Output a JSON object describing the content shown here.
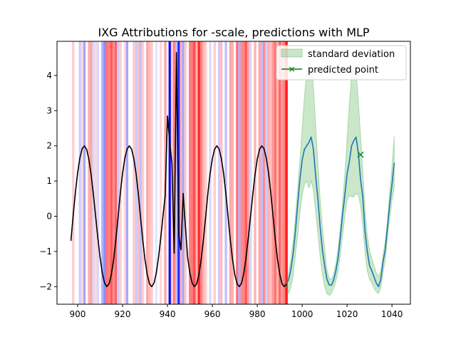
{
  "chart_data": {
    "type": "line",
    "title": "IXG Attributions for -scale, predictions with MLP",
    "xlabel": "",
    "ylabel": "",
    "xlim": [
      890.8,
      1048.2
    ],
    "ylim": [
      -2.5,
      4.97
    ],
    "xticks": [
      900,
      920,
      940,
      960,
      980,
      1000,
      1020,
      1040
    ],
    "yticks": [
      -2,
      -1,
      0,
      1,
      2,
      3,
      4
    ],
    "xtick_labels": [
      "900",
      "920",
      "940",
      "960",
      "980",
      "1000",
      "1020",
      "1040"
    ],
    "ytick_labels": [
      "−2",
      "−1",
      "0",
      "1",
      "2",
      "3",
      "4"
    ],
    "grid": false,
    "legend": {
      "placement": "top-right",
      "entries": [
        {
          "label": "standard deviation",
          "color": "#2ca02c",
          "kind": "fill"
        },
        {
          "label": "predicted point",
          "color": "#008000",
          "kind": "marker-x"
        }
      ]
    },
    "attribution_bands": [
      {
        "x": 898,
        "sign": "pos",
        "strength": 0.2
      },
      {
        "x": 901,
        "sign": "neg",
        "strength": 0.2
      },
      {
        "x": 902,
        "sign": "pos",
        "strength": 0.15
      },
      {
        "x": 903,
        "sign": "neg",
        "strength": 0.35
      },
      {
        "x": 905,
        "sign": "pos",
        "strength": 0.3
      },
      {
        "x": 906,
        "sign": "pos",
        "strength": 0.35
      },
      {
        "x": 907,
        "sign": "neg",
        "strength": 0.15
      },
      {
        "x": 908,
        "sign": "pos",
        "strength": 0.15
      },
      {
        "x": 909,
        "sign": "neg",
        "strength": 0.15
      },
      {
        "x": 911,
        "sign": "neg",
        "strength": 0.3
      },
      {
        "x": 912,
        "sign": "neg",
        "strength": 0.45
      },
      {
        "x": 913,
        "sign": "pos",
        "strength": 0.55
      },
      {
        "x": 914,
        "sign": "pos",
        "strength": 0.5
      },
      {
        "x": 915,
        "sign": "pos",
        "strength": 0.65
      },
      {
        "x": 916,
        "sign": "pos",
        "strength": 0.45
      },
      {
        "x": 917,
        "sign": "pos",
        "strength": 0.6
      },
      {
        "x": 918,
        "sign": "neg",
        "strength": 0.2
      },
      {
        "x": 919,
        "sign": "pos",
        "strength": 0.2
      },
      {
        "x": 921,
        "sign": "pos",
        "strength": 0.15
      },
      {
        "x": 922,
        "sign": "neg",
        "strength": 0.35
      },
      {
        "x": 925,
        "sign": "pos",
        "strength": 0.2
      },
      {
        "x": 926,
        "sign": "neg",
        "strength": 0.2
      },
      {
        "x": 927,
        "sign": "pos",
        "strength": 0.25
      },
      {
        "x": 928,
        "sign": "neg",
        "strength": 0.25
      },
      {
        "x": 929,
        "sign": "pos",
        "strength": 0.2
      },
      {
        "x": 931,
        "sign": "pos",
        "strength": 0.35
      },
      {
        "x": 932,
        "sign": "pos",
        "strength": 0.25
      },
      {
        "x": 933,
        "sign": "pos",
        "strength": 0.2
      },
      {
        "x": 935,
        "sign": "neg",
        "strength": 0.1
      },
      {
        "x": 937,
        "sign": "pos",
        "strength": 0.15
      },
      {
        "x": 939,
        "sign": "pos",
        "strength": 0.35
      },
      {
        "x": 941,
        "sign": "neg",
        "strength": 1.0
      },
      {
        "x": 942,
        "sign": "pos",
        "strength": 0.2
      },
      {
        "x": 943,
        "sign": "pos",
        "strength": 0.5
      },
      {
        "x": 944,
        "sign": "neg",
        "strength": 0.25
      },
      {
        "x": 945,
        "sign": "neg",
        "strength": 0.85
      },
      {
        "x": 946,
        "sign": "pos",
        "strength": 0.3
      },
      {
        "x": 947,
        "sign": "neg",
        "strength": 0.35
      },
      {
        "x": 948,
        "sign": "pos",
        "strength": 0.2
      },
      {
        "x": 950,
        "sign": "pos",
        "strength": 0.5
      },
      {
        "x": 951,
        "sign": "pos",
        "strength": 0.55
      },
      {
        "x": 952,
        "sign": "pos",
        "strength": 0.7
      },
      {
        "x": 953,
        "sign": "pos",
        "strength": 0.3
      },
      {
        "x": 954,
        "sign": "pos",
        "strength": 0.85
      },
      {
        "x": 955,
        "sign": "pos",
        "strength": 0.5
      },
      {
        "x": 956,
        "sign": "pos",
        "strength": 0.3
      },
      {
        "x": 957,
        "sign": "pos",
        "strength": 0.2
      },
      {
        "x": 959,
        "sign": "neg",
        "strength": 0.15
      },
      {
        "x": 961,
        "sign": "pos",
        "strength": 0.2
      },
      {
        "x": 963,
        "sign": "neg",
        "strength": 0.2
      },
      {
        "x": 964,
        "sign": "pos",
        "strength": 0.25
      },
      {
        "x": 966,
        "sign": "neg",
        "strength": 0.25
      },
      {
        "x": 968,
        "sign": "pos",
        "strength": 0.35
      },
      {
        "x": 969,
        "sign": "pos",
        "strength": 0.3
      },
      {
        "x": 971,
        "sign": "pos",
        "strength": 0.55
      },
      {
        "x": 972,
        "sign": "neg",
        "strength": 0.3
      },
      {
        "x": 973,
        "sign": "pos",
        "strength": 0.45
      },
      {
        "x": 974,
        "sign": "pos",
        "strength": 0.5
      },
      {
        "x": 975,
        "sign": "pos",
        "strength": 0.65
      },
      {
        "x": 976,
        "sign": "pos",
        "strength": 0.35
      },
      {
        "x": 977,
        "sign": "neg",
        "strength": 0.15
      },
      {
        "x": 979,
        "sign": "pos",
        "strength": 0.3
      },
      {
        "x": 981,
        "sign": "pos",
        "strength": 0.35
      },
      {
        "x": 982,
        "sign": "neg",
        "strength": 0.25
      },
      {
        "x": 983,
        "sign": "pos",
        "strength": 0.45
      },
      {
        "x": 984,
        "sign": "neg",
        "strength": 0.2
      },
      {
        "x": 985,
        "sign": "pos",
        "strength": 0.3
      },
      {
        "x": 986,
        "sign": "pos",
        "strength": 0.25
      },
      {
        "x": 987,
        "sign": "pos",
        "strength": 0.4
      },
      {
        "x": 988,
        "sign": "pos",
        "strength": 0.55
      },
      {
        "x": 989,
        "sign": "pos",
        "strength": 0.3
      },
      {
        "x": 990,
        "sign": "pos",
        "strength": 0.6
      },
      {
        "x": 991,
        "sign": "pos",
        "strength": 0.4
      },
      {
        "x": 992,
        "sign": "pos",
        "strength": 0.5
      },
      {
        "x": 993,
        "sign": "pos",
        "strength": 0.9
      }
    ],
    "series": [
      {
        "color": "#000000",
        "x": [
          897,
          898,
          899,
          900,
          901,
          902,
          903,
          904,
          905,
          906,
          907,
          908,
          909,
          910,
          911,
          912,
          913,
          914,
          915,
          916,
          917,
          918,
          919,
          920,
          921,
          922,
          923,
          924,
          925,
          926,
          927,
          928,
          929,
          930,
          931,
          932,
          933,
          934,
          935,
          936,
          937,
          938,
          939,
          940,
          941,
          942,
          943,
          944,
          945,
          946,
          947,
          948,
          949,
          950,
          951,
          952,
          953,
          954,
          955,
          956,
          957,
          958,
          959,
          960,
          961,
          962,
          963,
          964,
          965,
          966,
          967,
          968,
          969,
          970,
          971,
          972,
          973,
          974,
          975,
          976,
          977,
          978,
          979,
          980,
          981,
          982,
          983,
          984,
          985,
          986,
          987,
          988,
          989,
          990,
          991,
          992,
          993
        ],
        "y": [
          -0.7,
          0.02,
          0.68,
          1.24,
          1.66,
          1.92,
          2.0,
          1.9,
          1.62,
          1.18,
          0.62,
          0.0,
          -0.62,
          -1.18,
          -1.62,
          -1.9,
          -2.0,
          -1.92,
          -1.66,
          -1.24,
          -0.68,
          -0.02,
          0.65,
          1.22,
          1.64,
          1.91,
          2.0,
          1.91,
          1.64,
          1.22,
          0.65,
          -0.02,
          -0.68,
          -1.24,
          -1.66,
          -1.92,
          -2.0,
          -1.9,
          -1.62,
          -1.18,
          -0.62,
          0.0,
          0.6,
          2.85,
          2.1,
          1.5,
          -1.05,
          4.65,
          -0.5,
          -0.95,
          0.65,
          -0.3,
          -1.18,
          -1.62,
          -1.9,
          -2.0,
          -1.92,
          -1.66,
          -1.24,
          -0.68,
          -0.02,
          0.65,
          1.22,
          1.64,
          1.91,
          2.0,
          1.91,
          1.64,
          1.22,
          0.65,
          -0.02,
          -0.68,
          -1.24,
          -1.66,
          -1.92,
          -2.0,
          -1.9,
          -1.62,
          -1.18,
          -0.62,
          0.0,
          0.62,
          1.18,
          1.62,
          1.9,
          2.0,
          1.92,
          1.66,
          1.24,
          0.68,
          0.02,
          -0.65,
          -1.22,
          -1.64,
          -1.91,
          -2.0,
          -1.92
        ]
      },
      {
        "color": "#1f77b4",
        "x": [
          993,
          994,
          995,
          996,
          997,
          998,
          999,
          1000,
          1001,
          1002,
          1003,
          1004,
          1005,
          1006,
          1007,
          1008,
          1009,
          1010,
          1011,
          1012,
          1013,
          1014,
          1015,
          1016,
          1017,
          1018,
          1019,
          1020,
          1021,
          1022,
          1023,
          1024,
          1025,
          1026,
          1027,
          1028,
          1029,
          1030,
          1031,
          1032,
          1033,
          1034,
          1035,
          1036,
          1037,
          1038,
          1039,
          1040,
          1041
        ],
        "y": [
          -1.92,
          -1.8,
          -1.5,
          -1.05,
          -0.42,
          0.35,
          1.05,
          1.6,
          1.9,
          2.0,
          2.1,
          2.25,
          1.9,
          1.15,
          0.5,
          -0.3,
          -0.95,
          -1.4,
          -1.78,
          -1.95,
          -1.96,
          -1.82,
          -1.55,
          -1.18,
          -0.6,
          0.05,
          0.6,
          1.2,
          1.55,
          2.0,
          2.15,
          2.25,
          1.8,
          1.05,
          0.55,
          -0.45,
          -1.0,
          -1.4,
          -1.55,
          -1.72,
          -1.9,
          -2.0,
          -1.8,
          -1.3,
          -0.95,
          -0.3,
          0.35,
          0.9,
          1.52
        ]
      }
    ],
    "std_band": {
      "color": "#2ca02c",
      "x": [
        993,
        994,
        995,
        996,
        997,
        998,
        999,
        1000,
        1001,
        1002,
        1003,
        1004,
        1005,
        1006,
        1007,
        1008,
        1009,
        1010,
        1011,
        1012,
        1013,
        1014,
        1015,
        1016,
        1017,
        1018,
        1019,
        1020,
        1021,
        1022,
        1023,
        1024,
        1025,
        1026,
        1027,
        1028,
        1029,
        1030,
        1031,
        1032,
        1033,
        1034,
        1035,
        1036,
        1037,
        1038,
        1039,
        1040,
        1041
      ],
      "upper": [
        -1.9,
        -1.6,
        -1.2,
        -0.7,
        0.0,
        0.8,
        1.6,
        2.5,
        3.4,
        4.1,
        4.5,
        4.4,
        3.7,
        2.6,
        1.5,
        0.5,
        -0.3,
        -0.9,
        -1.5,
        -1.75,
        -1.8,
        -1.65,
        -1.35,
        -0.9,
        -0.3,
        0.4,
        1.2,
        2.2,
        3.2,
        4.0,
        4.45,
        4.1,
        3.3,
        2.3,
        1.3,
        0.2,
        -0.55,
        -0.95,
        -1.2,
        -1.4,
        -1.6,
        -1.7,
        -1.55,
        -1.1,
        -0.7,
        -0.1,
        0.7,
        1.4,
        2.28
      ],
      "lower": [
        -2.0,
        -2.2,
        -2.0,
        -1.7,
        -1.1,
        -0.55,
        0.1,
        0.6,
        0.9,
        1.0,
        0.8,
        1.0,
        0.75,
        0.1,
        -0.5,
        -1.15,
        -1.65,
        -2.0,
        -2.2,
        -2.25,
        -2.2,
        -2.05,
        -1.85,
        -1.55,
        -1.1,
        -0.55,
        0.0,
        0.45,
        0.6,
        0.55,
        0.55,
        0.65,
        0.6,
        0.3,
        -0.25,
        -1.05,
        -1.55,
        -1.8,
        -1.9,
        -2.05,
        -2.15,
        -2.2,
        -2.05,
        -1.6,
        -1.25,
        -0.6,
        -0.05,
        0.45,
        0.82
      ]
    },
    "predicted_point": {
      "x": 1026,
      "y": 1.75,
      "color": "#008000"
    }
  }
}
